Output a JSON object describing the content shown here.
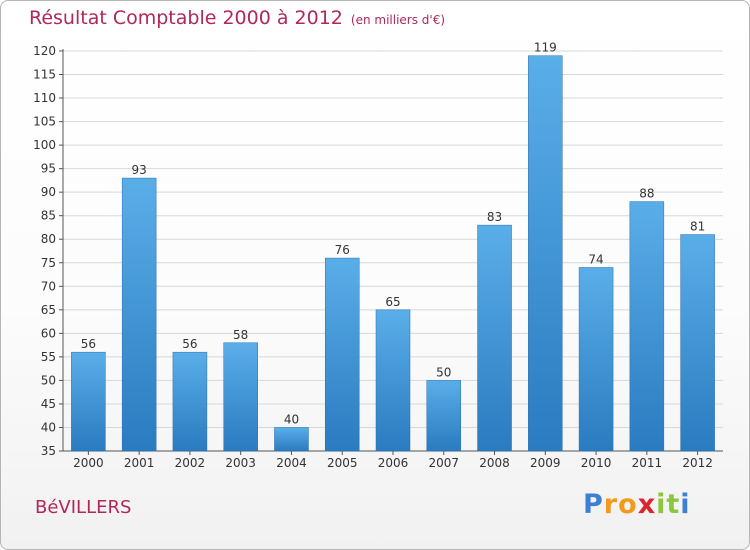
{
  "chart_data": {
    "type": "bar",
    "title": "Résultat Comptable 2000 à 2012",
    "subtitle": "(en milliers d'€)",
    "categories": [
      "2000",
      "2001",
      "2002",
      "2003",
      "2004",
      "2005",
      "2006",
      "2007",
      "2008",
      "2009",
      "2010",
      "2011",
      "2012"
    ],
    "values": [
      56,
      93,
      56,
      58,
      40,
      76,
      65,
      50,
      83,
      119,
      74,
      88,
      81
    ],
    "ylim": [
      35,
      120
    ],
    "yticks": [
      35,
      40,
      45,
      50,
      55,
      60,
      65,
      70,
      75,
      80,
      85,
      90,
      95,
      100,
      105,
      110,
      115,
      120
    ],
    "grid": true,
    "xlabel": "",
    "ylabel": "",
    "bar_color_top": "#5aaee8",
    "bar_color_bottom": "#2a7bc0"
  },
  "commune": "BéVILLERS",
  "brand": {
    "letters": [
      "P",
      "r",
      "o",
      "x",
      "i",
      "t",
      "i"
    ],
    "colors": [
      "#3d7fd0",
      "#f39a1e",
      "#f39a1e",
      "#d9262c",
      "#8cc63f",
      "#8cc63f",
      "#3d7fd0"
    ]
  },
  "colors": {
    "accent": "#b0285a",
    "grid": "#d8d8d8",
    "axis": "#555555"
  }
}
